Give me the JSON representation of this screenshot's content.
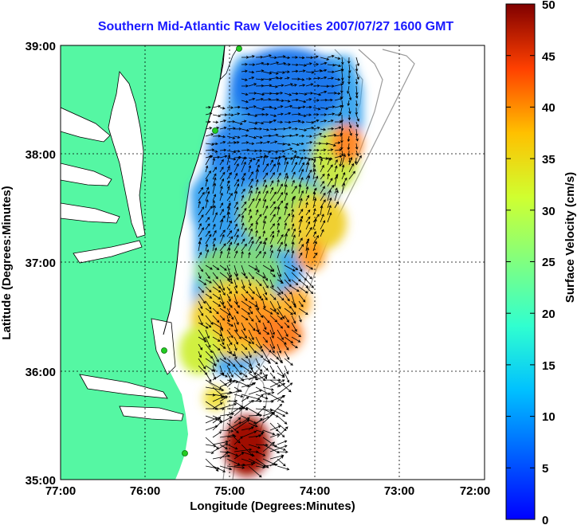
{
  "title": "Southern Mid-Atlantic Raw Velocities 2007/07/27 1600 GMT",
  "x_axis": {
    "label": "Longitude (Degrees:Minutes)",
    "ticks": [
      "77:00",
      "76:00",
      "75:00",
      "74:00",
      "73:00",
      "72:00"
    ]
  },
  "y_axis": {
    "label": "Latitude (Degrees:Minutes)",
    "ticks": [
      "39:00",
      "38:00",
      "37:00",
      "36:00",
      "35:00"
    ]
  },
  "colorbar": {
    "label": "Surface Velocity (cm/s)",
    "ticks": [
      "50",
      "45",
      "40",
      "35",
      "30",
      "25",
      "20",
      "15",
      "10",
      "5",
      "0"
    ],
    "range": [
      0,
      50
    ],
    "colormap": "jet"
  },
  "map": {
    "extent": {
      "lon_west": -77.0,
      "lon_east": -72.0,
      "lat_south": 35.0,
      "lat_north": 39.0
    },
    "land_color": "#55f7a3",
    "bathymetry_color": "#9a9a9a",
    "grid": "dotted",
    "station_color": "#22cc22"
  },
  "chart_data": {
    "type": "heatmap",
    "title": "Southern Mid-Atlantic Raw Velocities 2007/07/27 1600 GMT",
    "xlabel": "Longitude (Degrees:Minutes)",
    "ylabel": "Latitude (Degrees:Minutes)",
    "xlim": [
      -77.0,
      -72.0
    ],
    "ylim": [
      35.0,
      39.0
    ],
    "colorbar_label": "Surface Velocity (cm/s)",
    "clim": [
      0,
      50
    ],
    "stations": [
      {
        "lon": -74.9,
        "lat": 38.95
      },
      {
        "lon": -75.15,
        "lat": 38.2
      },
      {
        "lon": -75.75,
        "lat": 36.2
      },
      {
        "lon": -75.5,
        "lat": 35.25
      }
    ],
    "velocity_field_approx": [
      {
        "lon": -74.5,
        "lat": 38.6,
        "speed": 8
      },
      {
        "lon": -74.0,
        "lat": 38.3,
        "speed": 10
      },
      {
        "lon": -73.6,
        "lat": 38.0,
        "speed": 36
      },
      {
        "lon": -74.4,
        "lat": 37.6,
        "speed": 22
      },
      {
        "lon": -73.9,
        "lat": 37.4,
        "speed": 33
      },
      {
        "lon": -74.7,
        "lat": 37.0,
        "speed": 18
      },
      {
        "lon": -75.0,
        "lat": 36.5,
        "speed": 30
      },
      {
        "lon": -74.3,
        "lat": 36.4,
        "speed": 38
      },
      {
        "lon": -74.8,
        "lat": 35.5,
        "speed": 48
      },
      {
        "lon": -75.3,
        "lat": 36.1,
        "speed": 22
      }
    ]
  }
}
